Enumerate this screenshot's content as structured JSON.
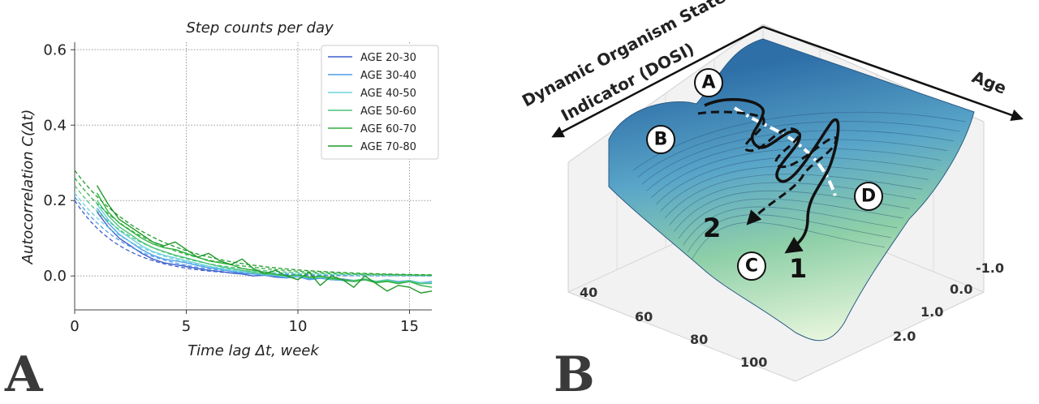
{
  "chart_data": [
    {
      "type": "line",
      "title": "Step counts per day",
      "xlabel": "Time  lag  Δt,  week",
      "ylabel": "Autocorrelation  C(Δt)",
      "xlim": [
        0,
        16
      ],
      "ylim": [
        -0.09,
        0.62
      ],
      "xticks": [
        0,
        5,
        10,
        15
      ],
      "yticks": [
        0.0,
        0.2,
        0.4,
        0.6
      ],
      "xtick_labels": [
        "0",
        "5",
        "10",
        "15"
      ],
      "ytick_labels": [
        "0.0",
        "0.2",
        "0.4",
        "0.6"
      ],
      "grid": true,
      "legend_position": "top-right",
      "panel_label": "A",
      "series": [
        {
          "name": "AGE 20-30",
          "color": "#3f5fd0",
          "x": [
            1,
            1.5,
            2,
            2.5,
            3,
            3.5,
            4,
            4.5,
            5,
            5.5,
            6,
            6.5,
            7,
            7.5,
            8,
            8.5,
            9,
            9.5,
            10,
            10.5,
            11,
            11.5,
            12,
            12.5,
            13,
            13.5,
            14,
            14.5,
            15,
            15.5,
            16
          ],
          "y": [
            0.17,
            0.13,
            0.1,
            0.08,
            0.06,
            0.045,
            0.035,
            0.03,
            0.025,
            0.02,
            0.015,
            0.012,
            0.008,
            0.005,
            0.0,
            0.002,
            -0.003,
            -0.005,
            0.0,
            -0.008,
            -0.005,
            -0.01,
            -0.008,
            -0.012,
            -0.01,
            -0.015,
            -0.01,
            -0.015,
            -0.012,
            -0.018,
            -0.015
          ],
          "fit_y0": 0.2,
          "fit_tau": 2.2
        },
        {
          "name": "AGE 30-40",
          "color": "#4f9fe8",
          "x": [
            1,
            1.5,
            2,
            2.5,
            3,
            3.5,
            4,
            4.5,
            5,
            5.5,
            6,
            6.5,
            7,
            7.5,
            8,
            8.5,
            9,
            9.5,
            10,
            10.5,
            11,
            11.5,
            12,
            12.5,
            13,
            13.5,
            14,
            14.5,
            15,
            15.5,
            16
          ],
          "y": [
            0.18,
            0.14,
            0.11,
            0.09,
            0.07,
            0.055,
            0.045,
            0.04,
            0.035,
            0.028,
            0.022,
            0.018,
            0.012,
            0.008,
            0.005,
            0.002,
            0.0,
            -0.005,
            -0.002,
            -0.01,
            -0.006,
            -0.01,
            -0.012,
            -0.015,
            -0.01,
            -0.018,
            -0.012,
            -0.02,
            -0.015,
            -0.02,
            -0.018
          ],
          "fit_y0": 0.21,
          "fit_tau": 2.5
        },
        {
          "name": "AGE 40-50",
          "color": "#6fd3dc",
          "x": [
            1,
            1.5,
            2,
            2.5,
            3,
            3.5,
            4,
            4.5,
            5,
            5.5,
            6,
            6.5,
            7,
            7.5,
            8,
            8.5,
            9,
            9.5,
            10,
            10.5,
            11,
            11.5,
            12,
            12.5,
            13,
            13.5,
            14,
            14.5,
            15,
            15.5,
            16
          ],
          "y": [
            0.19,
            0.15,
            0.12,
            0.1,
            0.08,
            0.065,
            0.055,
            0.048,
            0.04,
            0.033,
            0.026,
            0.02,
            0.015,
            0.012,
            0.008,
            0.004,
            0.002,
            -0.002,
            0.0,
            -0.006,
            -0.004,
            -0.008,
            -0.01,
            -0.012,
            -0.008,
            -0.014,
            -0.01,
            -0.016,
            -0.012,
            -0.018,
            -0.016
          ],
          "fit_y0": 0.22,
          "fit_tau": 2.8
        },
        {
          "name": "AGE 50-60",
          "color": "#4cc47a",
          "x": [
            1,
            1.5,
            2,
            2.5,
            3,
            3.5,
            4,
            4.5,
            5,
            5.5,
            6,
            6.5,
            7,
            7.5,
            8,
            8.5,
            9,
            9.5,
            10,
            10.5,
            11,
            11.5,
            12,
            12.5,
            13,
            13.5,
            14,
            14.5,
            15,
            15.5,
            16
          ],
          "y": [
            0.2,
            0.16,
            0.13,
            0.11,
            0.09,
            0.075,
            0.065,
            0.055,
            0.048,
            0.04,
            0.032,
            0.025,
            0.02,
            0.015,
            0.01,
            0.006,
            0.003,
            0.0,
            0.002,
            -0.005,
            -0.003,
            -0.008,
            -0.01,
            -0.012,
            -0.008,
            -0.015,
            -0.012,
            -0.018,
            -0.014,
            -0.02,
            -0.02
          ],
          "fit_y0": 0.24,
          "fit_tau": 3.0
        },
        {
          "name": "AGE 60-70",
          "color": "#33b040",
          "x": [
            1,
            1.5,
            2,
            2.5,
            3,
            3.5,
            4,
            4.5,
            5,
            5.5,
            6,
            6.5,
            7,
            7.5,
            8,
            8.5,
            9,
            9.5,
            10,
            10.5,
            11,
            11.5,
            12,
            12.5,
            13,
            13.5,
            14,
            14.5,
            15,
            15.5,
            16
          ],
          "y": [
            0.22,
            0.17,
            0.14,
            0.12,
            0.1,
            0.085,
            0.075,
            0.07,
            0.06,
            0.05,
            0.04,
            0.035,
            0.03,
            0.02,
            0.015,
            0.01,
            0.005,
            0.0,
            0.003,
            -0.003,
            0.0,
            -0.005,
            -0.01,
            -0.015,
            -0.01,
            -0.018,
            -0.015,
            -0.02,
            -0.015,
            -0.025,
            -0.03
          ],
          "fit_y0": 0.26,
          "fit_tau": 3.3
        },
        {
          "name": "AGE 70-80",
          "color": "#1f9a2a",
          "x": [
            1,
            1.5,
            2,
            2.5,
            3,
            3.5,
            4,
            4.5,
            5,
            5.5,
            6,
            6.5,
            7,
            7.5,
            8,
            8.5,
            9,
            9.5,
            10,
            10.5,
            11,
            11.5,
            12,
            12.5,
            13,
            13.5,
            14,
            14.5,
            15,
            15.5,
            16
          ],
          "y": [
            0.24,
            0.19,
            0.15,
            0.13,
            0.11,
            0.09,
            0.08,
            0.09,
            0.07,
            0.05,
            0.06,
            0.04,
            0.03,
            0.045,
            0.02,
            0.005,
            0.015,
            0.0,
            -0.01,
            0.01,
            -0.025,
            0.0,
            -0.01,
            -0.03,
            0.0,
            -0.02,
            -0.04,
            -0.025,
            -0.03,
            -0.045,
            -0.04
          ],
          "fit_y0": 0.28,
          "fit_tau": 3.5
        }
      ]
    },
    {
      "type": "surface",
      "panel_label": "B",
      "z_axis_label_line1": "Dynamic Organism State",
      "z_axis_label_line2": "Indicator (DOSI)",
      "age_axis_label": "Age",
      "age_ticks": [
        "40",
        "60",
        "80",
        "100"
      ],
      "dosi_ticks": [
        "-1.0",
        "0.0",
        "1.0",
        "2.0"
      ],
      "point_labels": [
        "A",
        "B",
        "C",
        "D"
      ],
      "trajectory_labels": [
        "1",
        "2"
      ],
      "colors": {
        "surface_top": "#2e6fa8",
        "surface_bottom": "#e6f5dc",
        "mid": "#5aa6c9",
        "accent": "#8fd0a8"
      }
    }
  ]
}
